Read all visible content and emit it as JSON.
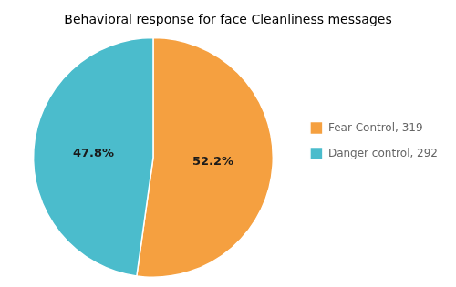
{
  "chart_data": {
    "type": "pie",
    "title": "Behavioral response for face Cleanliness messages",
    "categories": [
      "Fear Control, 319",
      "Danger control, 292"
    ],
    "values": [
      52.2,
      47.8
    ],
    "value_labels": [
      "52.2%",
      "47.8%"
    ],
    "colors": [
      "#F5A040",
      "#4BBCCC"
    ],
    "data_labels": true,
    "legend": "right"
  }
}
